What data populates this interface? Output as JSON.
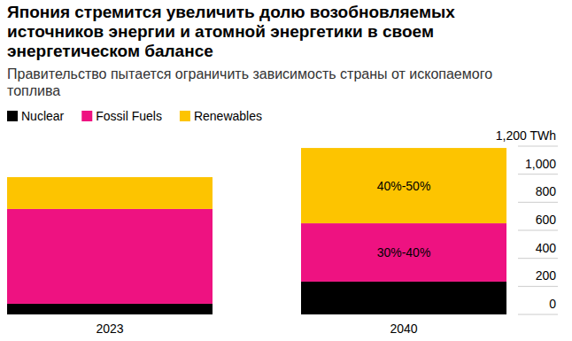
{
  "chart_data": {
    "type": "bar",
    "stacked": true,
    "title": "Япония стремится увеличить долю возобновляемых источников энергии и атомной энергетики в своем энергетическом балансе",
    "subtitle": "Правительство пытается ограничить зависимость страны от ископаемого топлива",
    "categories": [
      "2023",
      "2040"
    ],
    "series": [
      {
        "name": "Nuclear",
        "color": "#000000",
        "values": [
          76,
          234
        ]
      },
      {
        "name": "Fossil Fuels",
        "color": "#ee1281",
        "values": [
          676,
          416
        ]
      },
      {
        "name": "Renewables",
        "color": "#fdc400",
        "values": [
          227,
          537
        ]
      }
    ],
    "annotations": [
      {
        "text": "30%-40%",
        "category": "2040",
        "series": "Fossil Fuels"
      },
      {
        "text": "40%-50%",
        "category": "2040",
        "series": "Renewables"
      }
    ],
    "ylim": [
      0,
      1200
    ],
    "yticks": [
      0,
      200,
      400,
      600,
      800,
      {
        "value": 1000,
        "label": "1,000"
      },
      {
        "value": 1200,
        "label": "1,200 TWh"
      }
    ],
    "grid": false,
    "legend": "top-left"
  }
}
